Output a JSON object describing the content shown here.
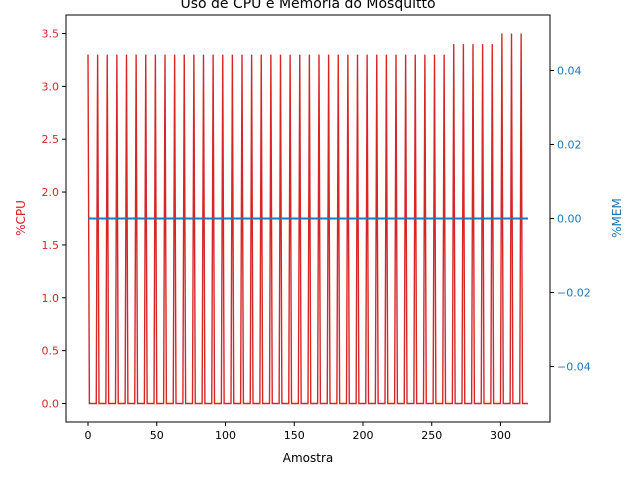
{
  "chart_data": {
    "type": "line",
    "title": "Uso de CPU e Memória do Mosquitto",
    "xlabel": "Amostra",
    "xlim": [
      -16,
      336
    ],
    "xticks": [
      0,
      50,
      100,
      150,
      200,
      250,
      300
    ],
    "y_left": {
      "label": "%CPU",
      "color": "#d62728",
      "lim": [
        -0.175,
        3.675
      ],
      "ticks": [
        0.0,
        0.5,
        1.0,
        1.5,
        2.0,
        2.5,
        3.0,
        3.5
      ],
      "tick_labels": [
        "0.0",
        "0.5",
        "1.0",
        "1.5",
        "2.0",
        "2.5",
        "3.0",
        "3.5"
      ]
    },
    "y_right": {
      "label": "%MEM",
      "color": "#1f77b4",
      "lim": [
        -0.055,
        0.055
      ],
      "ticks": [
        -0.04,
        -0.02,
        0.0,
        0.02,
        0.04
      ],
      "tick_labels": [
        "−0.04",
        "−0.02",
        "0.00",
        "0.02",
        "0.04"
      ]
    },
    "series": [
      {
        "axis": "left",
        "color": "#d62728",
        "spike_period": 7,
        "spike_start": 0,
        "spike_width": 1,
        "baseline": 0.0,
        "n_samples": 321,
        "spike_values": [
          3.3,
          3.3,
          3.3,
          3.3,
          3.3,
          3.3,
          3.3,
          3.3,
          3.3,
          3.3,
          3.3,
          3.3,
          3.3,
          3.3,
          3.3,
          3.3,
          3.3,
          3.3,
          3.3,
          3.3,
          3.3,
          3.3,
          3.3,
          3.3,
          3.3,
          3.3,
          3.3,
          3.3,
          3.3,
          3.3,
          3.3,
          3.3,
          3.3,
          3.3,
          3.3,
          3.3,
          3.3,
          3.3,
          3.4,
          3.4,
          3.4,
          3.4,
          3.4,
          3.5,
          3.5,
          3.5
        ]
      },
      {
        "axis": "right",
        "color": "#1f77b4",
        "x": [
          0,
          320
        ],
        "values": [
          0.0,
          0.0
        ]
      }
    ],
    "grid": false,
    "legend": "none"
  }
}
